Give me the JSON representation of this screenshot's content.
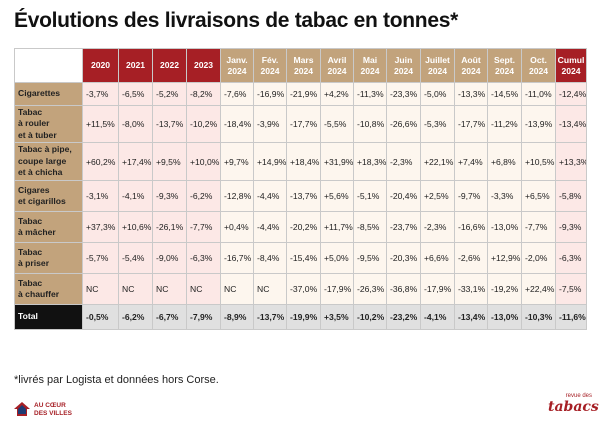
{
  "title": "Évolutions des livraisons de tabac en tonnes*",
  "footnote": "*livrés par Logista et données hors Corse.",
  "logos": {
    "left": {
      "line1": "AU CŒUR",
      "line2": "DES VILLES"
    },
    "right": {
      "line1": "revue des",
      "line2": "tabacs"
    }
  },
  "colors": {
    "accent_red": "#a61f25",
    "accent_tan": "#c2a37c",
    "total_row": "#111111"
  },
  "chart_data": {
    "type": "table",
    "columns": [
      {
        "line1": "2020",
        "line2": "",
        "group": "year"
      },
      {
        "line1": "2021",
        "line2": "",
        "group": "year"
      },
      {
        "line1": "2022",
        "line2": "",
        "group": "year"
      },
      {
        "line1": "2023",
        "line2": "",
        "group": "year"
      },
      {
        "line1": "Janv.",
        "line2": "2024",
        "group": "month"
      },
      {
        "line1": "Fév.",
        "line2": "2024",
        "group": "month"
      },
      {
        "line1": "Mars",
        "line2": "2024",
        "group": "month"
      },
      {
        "line1": "Avril",
        "line2": "2024",
        "group": "month"
      },
      {
        "line1": "Mai",
        "line2": "2024",
        "group": "month"
      },
      {
        "line1": "Juin",
        "line2": "2024",
        "group": "month"
      },
      {
        "line1": "Juillet",
        "line2": "2024",
        "group": "month"
      },
      {
        "line1": "Août",
        "line2": "2024",
        "group": "month"
      },
      {
        "line1": "Sept.",
        "line2": "2024",
        "group": "month"
      },
      {
        "line1": "Oct.",
        "line2": "2024",
        "group": "month"
      },
      {
        "line1": "Cumul",
        "line2": "2024",
        "group": "cumul"
      }
    ],
    "rows": [
      {
        "label": [
          "Cigarettes"
        ],
        "values": [
          "-3,7%",
          "-6,5%",
          "-5,2%",
          "-8,2%",
          "-7,6%",
          "-16,9%",
          "-21,9%",
          "+4,2%",
          "-11,3%",
          "-23,3%",
          "-5,0%",
          "-13,3%",
          "-14,5%",
          "-11,0%",
          "-12,4%"
        ]
      },
      {
        "label": [
          "Tabac",
          "à rouler",
          "et à tuber"
        ],
        "values": [
          "+11,5%",
          "-8,0%",
          "-13,7%",
          "-10,2%",
          "-18,4%",
          "-3,9%",
          "-17,7%",
          "-5,5%",
          "-10,8%",
          "-26,6%",
          "-5,3%",
          "-17,7%",
          "-11,2%",
          "-13,9%",
          "-13,4%"
        ]
      },
      {
        "label": [
          "Tabac à pipe,",
          "coupe large",
          "et à chicha"
        ],
        "values": [
          "+60,2%",
          "+17,4%",
          "+9,5%",
          "+10,0%",
          "+9,7%",
          "+14,9%",
          "+18,4%",
          "+31,9%",
          "+18,3%",
          "-2,3%",
          "+22,1%",
          "+7,4%",
          "+6,8%",
          "+10,5%",
          "+13,3%"
        ]
      },
      {
        "label": [
          "Cigares",
          "et cigarillos"
        ],
        "values": [
          "-3,1%",
          "-4,1%",
          "-9,3%",
          "-6,2%",
          "-12,8%",
          "-4,4%",
          "-13,7%",
          "+5,6%",
          "-5,1%",
          "-20,4%",
          "+2,5%",
          "-9,7%",
          "-3,3%",
          "+6,5%",
          "-5,8%"
        ]
      },
      {
        "label": [
          "Tabac",
          "à mâcher"
        ],
        "values": [
          "+37,3%",
          "+10,6%",
          "-26,1%",
          "-7,7%",
          "+0,4%",
          "-4,4%",
          "-20,2%",
          "+11,7%",
          "-8,5%",
          "-23,7%",
          "-2,3%",
          "-16,6%",
          "-13,0%",
          "-7,7%",
          "-9,3%"
        ]
      },
      {
        "label": [
          "Tabac",
          "à priser"
        ],
        "values": [
          "-5,7%",
          "-5,4%",
          "-9,0%",
          "-6,3%",
          "-16,7%",
          "-8,4%",
          "-15,4%",
          "+5,0%",
          "-9,5%",
          "-20,3%",
          "+6,6%",
          "-2,6%",
          "+12,9%",
          "-2,0%",
          "-6,3%"
        ]
      },
      {
        "label": [
          "Tabac",
          "à chauffer"
        ],
        "values": [
          "NC",
          "NC",
          "NC",
          "NC",
          "NC",
          "NC",
          "-37,0%",
          "-17,9%",
          "-26,3%",
          "-36,8%",
          "-17,9%",
          "-33,1%",
          "-19,2%",
          "+22,4%",
          "-7,5%"
        ]
      },
      {
        "label": [
          "Total"
        ],
        "total": true,
        "values": [
          "-0,5%",
          "-6,2%",
          "-6,7%",
          "-7,9%",
          "-8,9%",
          "-13,7%",
          "-19,9%",
          "+3,5%",
          "-10,2%",
          "-23,2%",
          "-4,1%",
          "-13,4%",
          "-13,0%",
          "-10,3%",
          "-11,6%"
        ]
      }
    ]
  }
}
